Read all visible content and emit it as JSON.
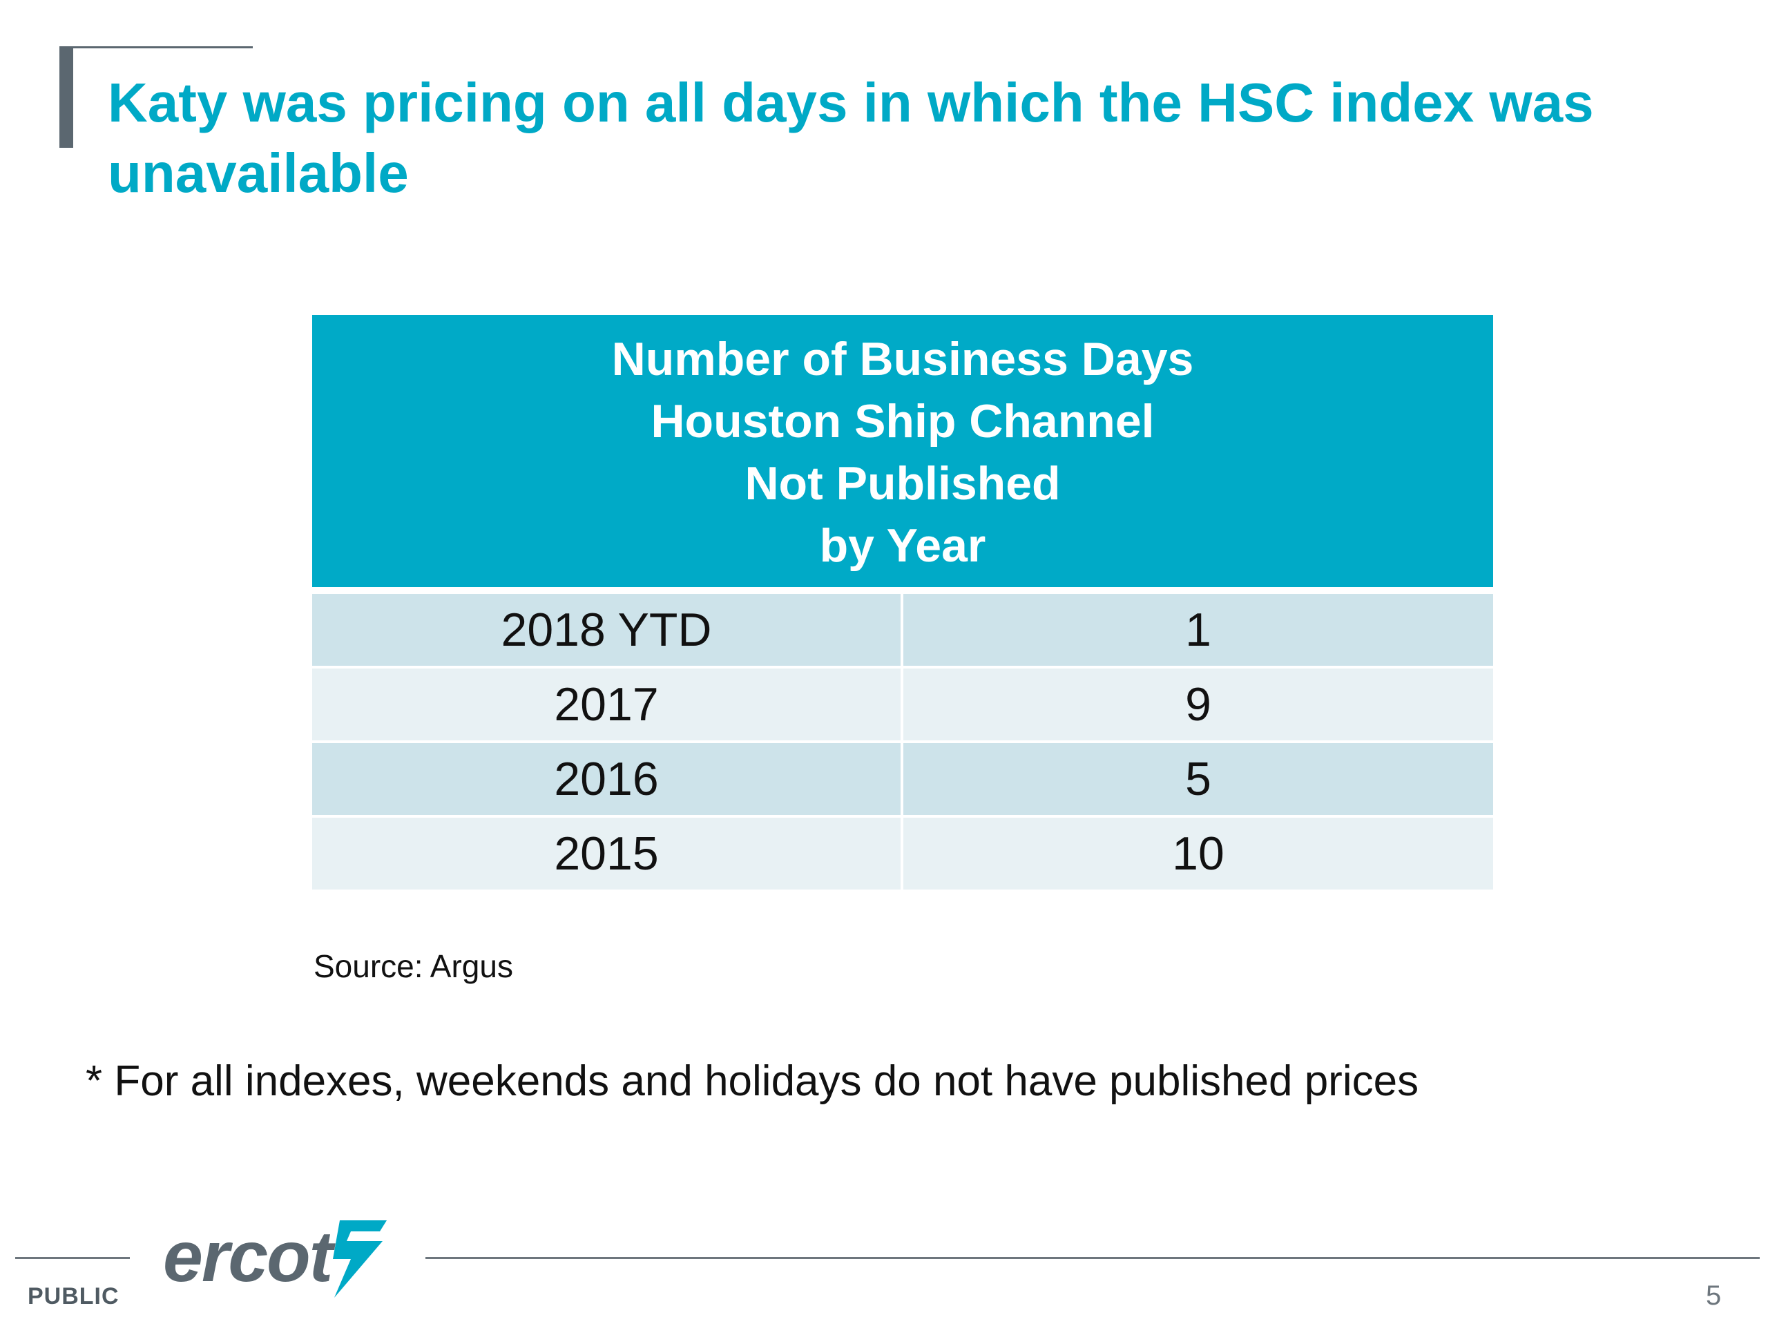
{
  "slide": {
    "title": "Katy was pricing on all days in which the HSC index was unavailable",
    "table": {
      "header_lines": [
        "Number of Business Days",
        "Houston Ship Channel",
        "Not Published",
        "by Year"
      ],
      "rows": [
        {
          "year": "2018 YTD",
          "days": "1"
        },
        {
          "year": "2017",
          "days": "9"
        },
        {
          "year": "2016",
          "days": "5"
        },
        {
          "year": "2015",
          "days": "10"
        }
      ]
    },
    "source": "Source: Argus",
    "footnote": "* For all indexes, weekends and holidays do not have published prices"
  },
  "footer": {
    "logo_text": "ercot",
    "logo_mark_icon": "ercot-bolt-mark-icon",
    "classification": "PUBLIC",
    "page_number": "5"
  },
  "colors": {
    "title": "#00a9c6",
    "table_header": "#00aac7",
    "row_dark": "#cde3ea",
    "row_light": "#e8f1f4",
    "logo_gray": "#5b6770",
    "logo_teal": "#00a9c6"
  }
}
